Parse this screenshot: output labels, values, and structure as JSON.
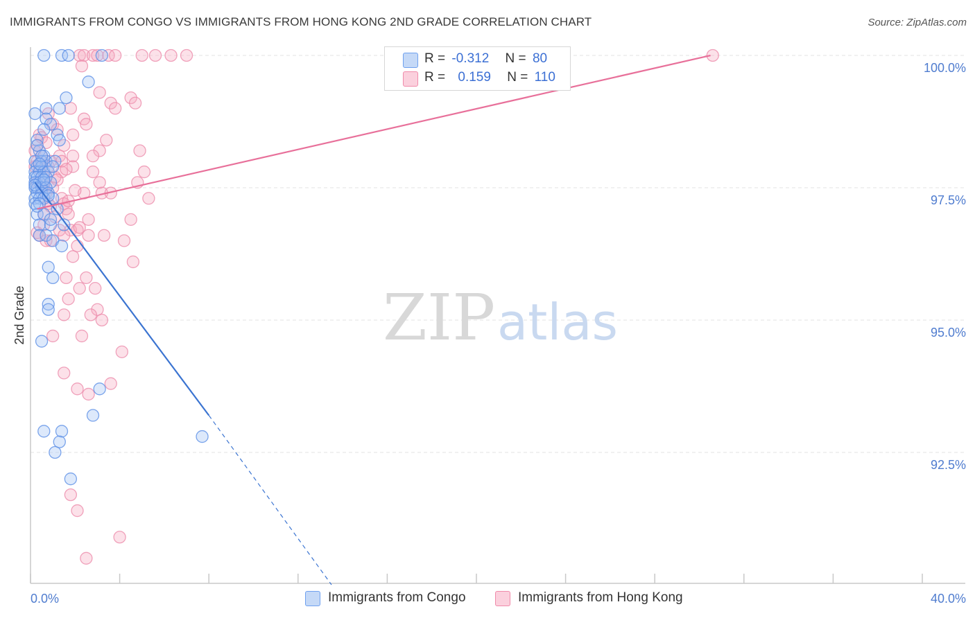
{
  "title": "IMMIGRANTS FROM CONGO VS IMMIGRANTS FROM HONG KONG 2ND GRADE CORRELATION CHART",
  "source": "Source: ZipAtlas.com",
  "watermark": {
    "zip": "ZIP",
    "atlas": "atlas"
  },
  "legend": {
    "rows": [
      {
        "r_label": "R =",
        "r_value": "-0.312",
        "n_label": "N =",
        "n_value": "80",
        "color": "#6ea0ef"
      },
      {
        "r_label": "R =",
        "r_value": "0.159",
        "n_label": "N =",
        "n_value": "110",
        "color": "#f08aaa"
      }
    ]
  },
  "chart_data": {
    "type": "scatter",
    "title": "IMMIGRANTS FROM CONGO VS IMMIGRANTS FROM HONG KONG 2ND GRADE CORRELATION CHART",
    "ylabel": "2nd Grade",
    "xlabel": "",
    "xlim": [
      0,
      40
    ],
    "ylim": [
      90.0,
      100.2
    ],
    "x_ticks_labels": [
      "0.0%",
      "40.0%"
    ],
    "y_ticks": [
      92.5,
      95.0,
      97.5,
      100.0
    ],
    "y_ticks_labels": [
      "92.5%",
      "95.0%",
      "97.5%",
      "100.0%"
    ],
    "grid": true,
    "legend_position": "top-center",
    "series": [
      {
        "name": "Immigrants from Congo",
        "color": "#6ea0ef",
        "line_color": "#3b74d1",
        "trend": {
          "x0": 0.2,
          "y0": 97.6,
          "x1": 8.0,
          "y1": 93.2,
          "dash_x1": 13.5,
          "dash_y1": 90.0
        },
        "points": [
          [
            0.6,
            100.0
          ],
          [
            1.4,
            100.0
          ],
          [
            1.7,
            100.0
          ],
          [
            3.2,
            100.0
          ],
          [
            2.6,
            99.5
          ],
          [
            1.6,
            99.2
          ],
          [
            0.7,
            99.0
          ],
          [
            1.3,
            99.0
          ],
          [
            0.2,
            98.9
          ],
          [
            0.7,
            98.8
          ],
          [
            0.9,
            98.7
          ],
          [
            0.6,
            98.6
          ],
          [
            1.2,
            98.5
          ],
          [
            0.3,
            98.4
          ],
          [
            1.3,
            98.4
          ],
          [
            0.4,
            98.2
          ],
          [
            0.6,
            98.1
          ],
          [
            0.2,
            98.0
          ],
          [
            0.5,
            98.0
          ],
          [
            0.7,
            98.0
          ],
          [
            1.1,
            98.0
          ],
          [
            0.3,
            97.9
          ],
          [
            0.5,
            97.9
          ],
          [
            0.2,
            97.8
          ],
          [
            0.4,
            97.8
          ],
          [
            0.6,
            97.8
          ],
          [
            0.8,
            97.8
          ],
          [
            0.2,
            97.7
          ],
          [
            0.3,
            97.7
          ],
          [
            0.5,
            97.7
          ],
          [
            0.7,
            97.7
          ],
          [
            0.2,
            97.6
          ],
          [
            0.4,
            97.6
          ],
          [
            0.6,
            97.6
          ],
          [
            0.9,
            97.6
          ],
          [
            0.2,
            97.5
          ],
          [
            0.3,
            97.5
          ],
          [
            0.5,
            97.5
          ],
          [
            0.7,
            97.5
          ],
          [
            0.3,
            97.4
          ],
          [
            0.5,
            97.4
          ],
          [
            0.8,
            97.4
          ],
          [
            0.2,
            97.3
          ],
          [
            0.4,
            97.3
          ],
          [
            0.6,
            97.3
          ],
          [
            1.0,
            97.3
          ],
          [
            0.2,
            97.2
          ],
          [
            0.4,
            97.2
          ],
          [
            0.3,
            97.0
          ],
          [
            0.6,
            97.0
          ],
          [
            0.4,
            96.8
          ],
          [
            0.9,
            96.8
          ],
          [
            1.5,
            96.8
          ],
          [
            0.4,
            96.6
          ],
          [
            0.7,
            96.6
          ],
          [
            1.0,
            96.5
          ],
          [
            1.4,
            96.4
          ],
          [
            0.8,
            96.0
          ],
          [
            1.0,
            95.8
          ],
          [
            0.8,
            95.3
          ],
          [
            0.8,
            95.2
          ],
          [
            0.5,
            94.6
          ],
          [
            3.1,
            93.7
          ],
          [
            2.8,
            93.2
          ],
          [
            0.6,
            92.9
          ],
          [
            1.4,
            92.9
          ],
          [
            7.7,
            92.8
          ],
          [
            1.3,
            92.7
          ],
          [
            1.1,
            92.5
          ],
          [
            1.8,
            92.0
          ],
          [
            0.9,
            96.9
          ],
          [
            0.3,
            98.3
          ],
          [
            0.5,
            98.1
          ],
          [
            1.0,
            97.9
          ],
          [
            0.4,
            97.95
          ],
          [
            0.6,
            97.65
          ],
          [
            0.2,
            97.55
          ],
          [
            0.8,
            97.35
          ],
          [
            0.3,
            97.15
          ],
          [
            1.2,
            97.1
          ]
        ]
      },
      {
        "name": "Immigrants from Hong Kong",
        "color": "#f08aaa",
        "line_color": "#e8709a",
        "trend": {
          "x0": 0.3,
          "y0": 97.1,
          "x1": 30.5,
          "y1": 100.0
        },
        "points": [
          [
            2.2,
            100.0
          ],
          [
            2.4,
            100.0
          ],
          [
            2.8,
            100.0
          ],
          [
            3.0,
            100.0
          ],
          [
            3.5,
            100.0
          ],
          [
            3.8,
            100.0
          ],
          [
            5.0,
            100.0
          ],
          [
            5.6,
            100.0
          ],
          [
            6.3,
            100.0
          ],
          [
            7.0,
            100.0
          ],
          [
            30.6,
            100.0
          ],
          [
            2.3,
            99.8
          ],
          [
            3.1,
            99.3
          ],
          [
            4.5,
            99.2
          ],
          [
            3.6,
            99.1
          ],
          [
            4.7,
            99.1
          ],
          [
            1.8,
            99.0
          ],
          [
            0.8,
            98.9
          ],
          [
            2.4,
            98.8
          ],
          [
            1.0,
            98.7
          ],
          [
            2.5,
            98.7
          ],
          [
            0.4,
            98.5
          ],
          [
            1.9,
            98.5
          ],
          [
            3.4,
            98.4
          ],
          [
            0.3,
            98.3
          ],
          [
            1.5,
            98.3
          ],
          [
            3.1,
            98.2
          ],
          [
            4.9,
            98.2
          ],
          [
            0.5,
            98.1
          ],
          [
            1.3,
            98.1
          ],
          [
            2.8,
            98.1
          ],
          [
            0.3,
            98.0
          ],
          [
            0.9,
            98.0
          ],
          [
            1.4,
            98.0
          ],
          [
            1.9,
            97.9
          ],
          [
            0.2,
            97.9
          ],
          [
            0.8,
            97.9
          ],
          [
            1.4,
            97.8
          ],
          [
            5.1,
            97.8
          ],
          [
            2.8,
            97.8
          ],
          [
            0.6,
            97.7
          ],
          [
            1.1,
            97.7
          ],
          [
            0.3,
            97.6
          ],
          [
            3.1,
            97.6
          ],
          [
            4.8,
            97.6
          ],
          [
            0.5,
            97.5
          ],
          [
            1.0,
            97.5
          ],
          [
            0.7,
            97.4
          ],
          [
            2.4,
            97.4
          ],
          [
            3.2,
            97.4
          ],
          [
            3.6,
            97.4
          ],
          [
            1.4,
            97.3
          ],
          [
            5.3,
            97.3
          ],
          [
            0.8,
            97.2
          ],
          [
            1.5,
            97.2
          ],
          [
            1.6,
            97.1
          ],
          [
            0.6,
            97.0
          ],
          [
            1.7,
            97.0
          ],
          [
            2.6,
            96.9
          ],
          [
            4.5,
            96.9
          ],
          [
            0.6,
            96.8
          ],
          [
            1.3,
            96.7
          ],
          [
            1.8,
            96.7
          ],
          [
            2.1,
            96.7
          ],
          [
            2.6,
            96.6
          ],
          [
            3.3,
            96.6
          ],
          [
            0.4,
            96.6
          ],
          [
            0.7,
            96.5
          ],
          [
            1.5,
            96.6
          ],
          [
            4.2,
            96.5
          ],
          [
            0.9,
            96.5
          ],
          [
            2.1,
            96.4
          ],
          [
            1.9,
            96.2
          ],
          [
            4.6,
            96.1
          ],
          [
            2.5,
            95.8
          ],
          [
            1.6,
            95.8
          ],
          [
            2.2,
            95.6
          ],
          [
            2.9,
            95.6
          ],
          [
            1.7,
            95.4
          ],
          [
            3.0,
            95.2
          ],
          [
            1.5,
            95.1
          ],
          [
            2.7,
            95.1
          ],
          [
            3.2,
            95.0
          ],
          [
            1.0,
            94.7
          ],
          [
            2.3,
            94.7
          ],
          [
            4.1,
            94.4
          ],
          [
            1.5,
            94.0
          ],
          [
            3.6,
            93.8
          ],
          [
            2.1,
            93.7
          ],
          [
            2.6,
            93.6
          ],
          [
            1.8,
            91.7
          ],
          [
            2.1,
            91.4
          ],
          [
            4.0,
            90.9
          ],
          [
            2.5,
            90.5
          ],
          [
            0.2,
            98.2
          ],
          [
            0.4,
            97.85
          ],
          [
            0.6,
            97.55
          ],
          [
            1.2,
            97.65
          ],
          [
            0.9,
            97.15
          ],
          [
            1.7,
            97.25
          ],
          [
            0.3,
            96.65
          ],
          [
            1.1,
            96.95
          ],
          [
            2.0,
            97.45
          ],
          [
            0.5,
            98.45
          ],
          [
            1.6,
            97.85
          ],
          [
            2.2,
            96.75
          ],
          [
            3.8,
            99.0
          ],
          [
            1.2,
            98.6
          ],
          [
            0.7,
            98.35
          ],
          [
            1.9,
            98.1
          ]
        ]
      }
    ]
  }
}
